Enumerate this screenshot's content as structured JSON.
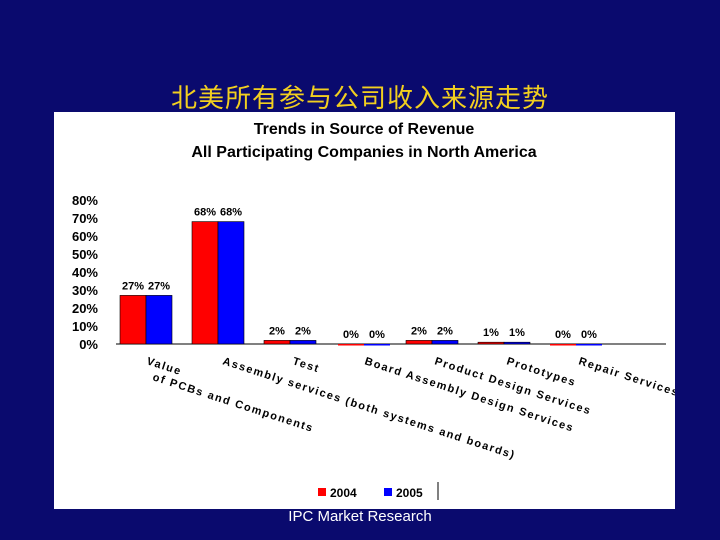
{
  "slide": {
    "title": "北美所有参与公司收入来源走势",
    "footer": "IPC Market Research"
  },
  "chart_data": {
    "type": "bar",
    "title": "Trends in Source of Revenue",
    "subtitle": "All Participating Companies in North America",
    "categories": [
      "Value of PCBs and Components",
      "Assembly services (both systems and boards)",
      "Test",
      "Board Assembly Design Services",
      "Product Design Services",
      "Prototypes",
      "Repair Services"
    ],
    "category_label_lines": [
      [
        "Value",
        "of PCBs and Components"
      ],
      [
        "Assembly services (both systems and boards)"
      ],
      [
        "Test"
      ],
      [
        "Board Assembly Design Services"
      ],
      [
        "Product Design Services"
      ],
      [
        "Prototypes"
      ],
      [
        "Repair Services"
      ]
    ],
    "series": [
      {
        "name": "2004",
        "color": "#ff0000",
        "values": [
          27,
          68,
          2,
          0,
          2,
          1,
          0
        ]
      },
      {
        "name": "2005",
        "color": "#0000ff",
        "values": [
          27,
          68,
          2,
          0,
          2,
          1,
          0
        ]
      }
    ],
    "data_labels": [
      [
        "27%",
        "68%",
        "2%",
        "0%",
        "2%",
        "1%",
        "0%"
      ],
      [
        "27%",
        "68%",
        "2%",
        "0%",
        "2%",
        "1%",
        "0%"
      ]
    ],
    "y_ticks": [
      "80%",
      "70%",
      "60%",
      "50%",
      "40%",
      "30%",
      "20%",
      "10%",
      "0%"
    ],
    "ylim": [
      0,
      80
    ],
    "grid": false,
    "legend_position": "bottom"
  }
}
